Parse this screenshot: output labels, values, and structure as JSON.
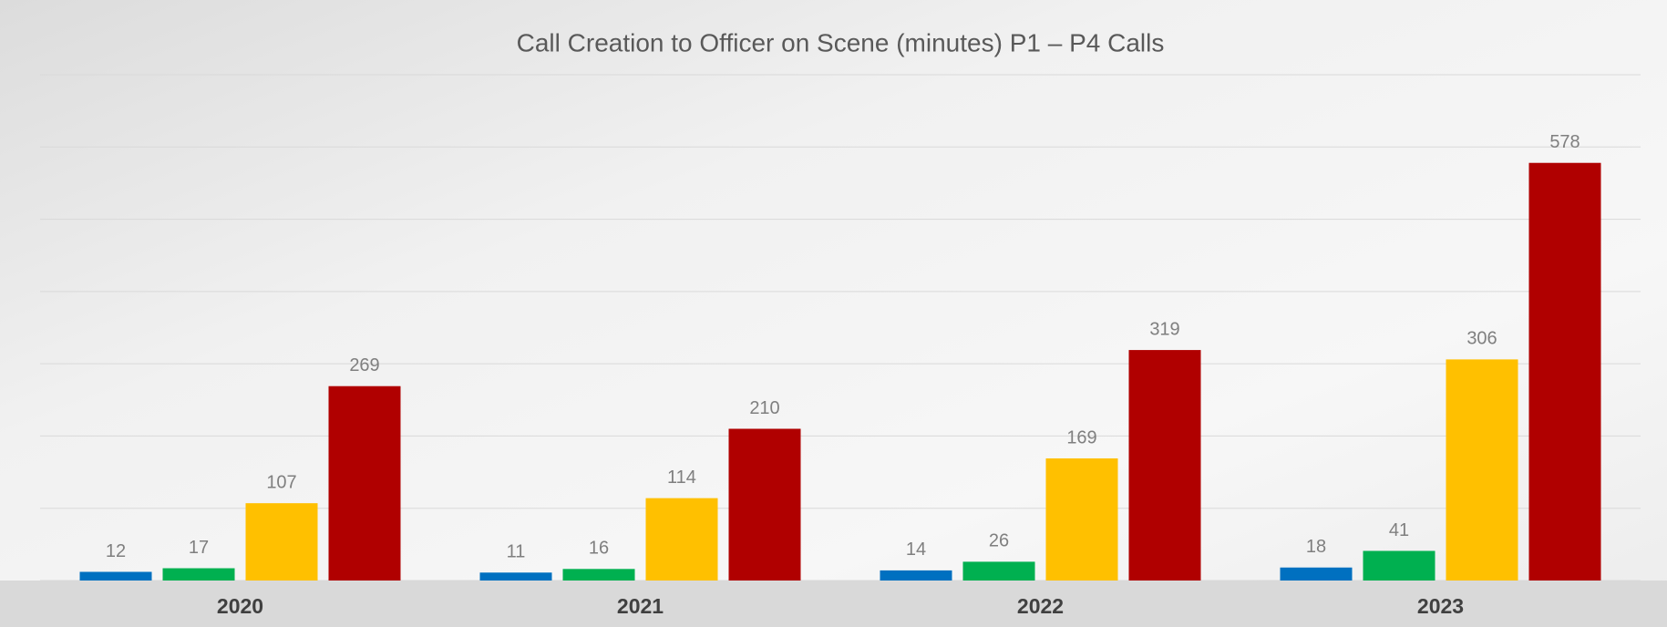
{
  "chart_data": {
    "type": "bar",
    "title": "Call Creation to Officer on Scene (minutes) P1 – P4 Calls",
    "categories": [
      "2020",
      "2021",
      "2022",
      "2023"
    ],
    "series": [
      {
        "color": "#0070c0",
        "values": [
          12,
          11,
          14,
          18
        ]
      },
      {
        "color": "#00b050",
        "values": [
          17,
          16,
          26,
          41
        ]
      },
      {
        "color": "#ffc000",
        "values": [
          107,
          114,
          169,
          306
        ]
      },
      {
        "color": "#b00000",
        "values": [
          269,
          210,
          319,
          578
        ]
      }
    ],
    "ylim": [
      0,
      700
    ],
    "yticks": [
      0,
      100,
      200,
      300,
      400,
      500,
      600,
      700
    ],
    "grid": true
  }
}
